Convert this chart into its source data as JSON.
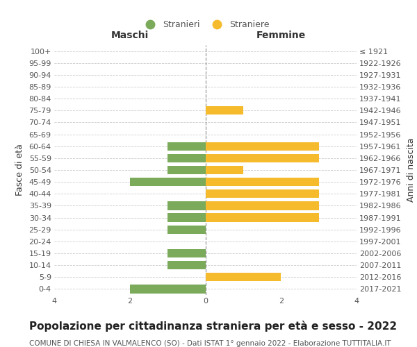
{
  "age_groups": [
    "100+",
    "95-99",
    "90-94",
    "85-89",
    "80-84",
    "75-79",
    "70-74",
    "65-69",
    "60-64",
    "55-59",
    "50-54",
    "45-49",
    "40-44",
    "35-39",
    "30-34",
    "25-29",
    "20-24",
    "15-19",
    "10-14",
    "5-9",
    "0-4"
  ],
  "birth_years": [
    "≤ 1921",
    "1922-1926",
    "1927-1931",
    "1932-1936",
    "1937-1941",
    "1942-1946",
    "1947-1951",
    "1952-1956",
    "1957-1961",
    "1962-1966",
    "1967-1971",
    "1972-1976",
    "1977-1981",
    "1982-1986",
    "1987-1991",
    "1992-1996",
    "1997-2001",
    "2002-2006",
    "2007-2011",
    "2012-2016",
    "2017-2021"
  ],
  "maschi": [
    0,
    0,
    0,
    0,
    0,
    0,
    0,
    0,
    1,
    1,
    1,
    2,
    0,
    1,
    1,
    1,
    0,
    1,
    1,
    0,
    2
  ],
  "femmine": [
    0,
    0,
    0,
    0,
    0,
    1,
    0,
    0,
    3,
    3,
    1,
    3,
    3,
    3,
    3,
    0,
    0,
    0,
    0,
    2,
    0
  ],
  "color_maschi": "#7aaa5a",
  "color_femmine": "#f5bb2c",
  "color_grid": "#cccccc",
  "color_dashed_line": "#999999",
  "xlim": 4,
  "title": "Popolazione per cittadinanza straniera per età e sesso - 2022",
  "subtitle": "COMUNE DI CHIESA IN VALMALENCO (SO) - Dati ISTAT 1° gennaio 2022 - Elaborazione TUTTITALIA.IT",
  "ylabel_left": "Fasce di età",
  "ylabel_right": "Anni di nascita",
  "xlabel_left": "Maschi",
  "xlabel_right": "Femmine",
  "legend_stranieri": "Stranieri",
  "legend_straniere": "Straniere",
  "title_fontsize": 11,
  "subtitle_fontsize": 7.5,
  "label_fontsize": 9,
  "tick_fontsize": 8,
  "header_fontsize": 10
}
